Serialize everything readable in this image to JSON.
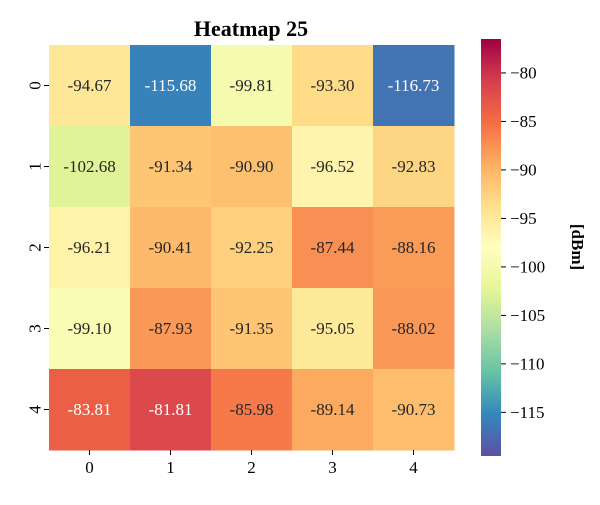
{
  "chart_data": {
    "type": "heatmap",
    "title": "Heatmap 25",
    "x_categories": [
      "0",
      "1",
      "2",
      "3",
      "4"
    ],
    "y_categories": [
      "0",
      "1",
      "2",
      "3",
      "4"
    ],
    "values": [
      [
        -94.67,
        -115.68,
        -99.81,
        -93.3,
        -116.73
      ],
      [
        -102.68,
        -91.34,
        -90.9,
        -96.52,
        -92.83
      ],
      [
        -96.21,
        -90.41,
        -92.25,
        -87.44,
        -88.16
      ],
      [
        -99.1,
        -87.93,
        -91.35,
        -95.05,
        -88.02
      ],
      [
        -83.81,
        -81.81,
        -85.98,
        -89.14,
        -90.73
      ]
    ],
    "value_format": "%.2f",
    "colormap": "Spectral_r",
    "vmin": -119.5,
    "vmax": -76.5,
    "colorbar": {
      "label": "[dBm]",
      "ticks": [
        -80,
        -85,
        -90,
        -95,
        -100,
        -105,
        -110,
        -115
      ],
      "tick_labels": [
        "−80",
        "−85",
        "−90",
        "−95",
        "−100",
        "−105",
        "−110",
        "−115"
      ]
    },
    "xlabel": "",
    "ylabel": ""
  }
}
